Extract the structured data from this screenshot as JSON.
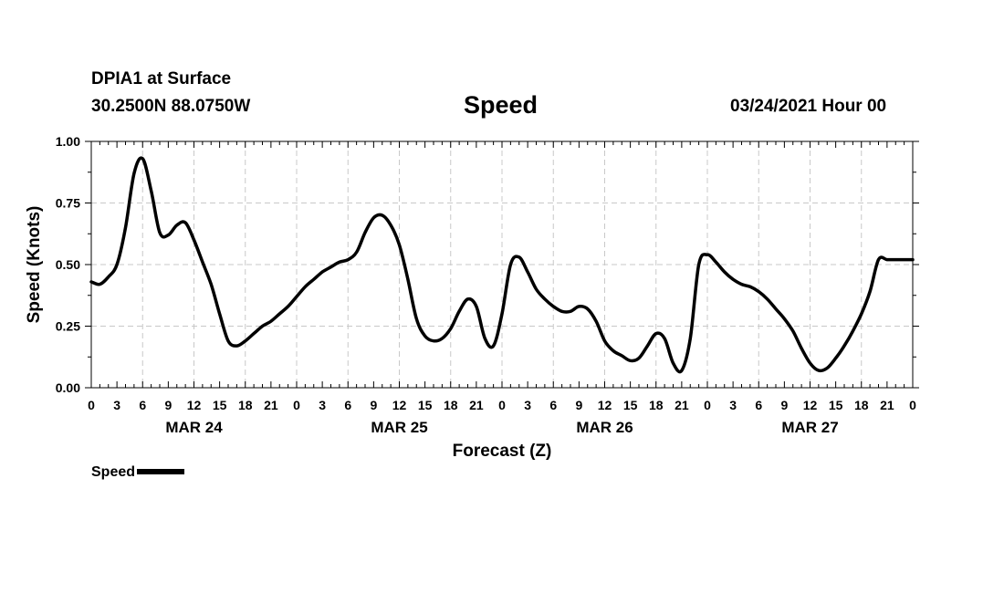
{
  "header": {
    "station": "DPIA1 at Surface",
    "coords": "30.2500N 88.0750W",
    "title": "Speed",
    "datetime": "03/24/2021 Hour 00"
  },
  "legend": {
    "label": "Speed"
  },
  "chart_data": {
    "type": "line",
    "title": "Speed",
    "xlabel": "Forecast (Z)",
    "ylabel": "Speed (Knots)",
    "xlim": [
      0,
      96
    ],
    "ylim": [
      0,
      1.0
    ],
    "grid": true,
    "legend_placement": "bottom-left",
    "x_tick_labels": [
      "0",
      "3",
      "6",
      "9",
      "12",
      "15",
      "18",
      "21",
      "0",
      "3",
      "6",
      "9",
      "12",
      "15",
      "18",
      "21",
      "0",
      "3",
      "6",
      "9",
      "12",
      "15",
      "18",
      "21",
      "0",
      "3",
      "6",
      "9",
      "12",
      "15",
      "18",
      "21",
      "0"
    ],
    "y_ticks": [
      0.0,
      0.25,
      0.5,
      0.75,
      1.0
    ],
    "y_tick_labels": [
      "0.00",
      "0.25",
      "0.50",
      "0.75",
      "1.00"
    ],
    "day_labels": [
      {
        "label": "MAR 24",
        "hour": 12
      },
      {
        "label": "MAR 25",
        "hour": 36
      },
      {
        "label": "MAR 26",
        "hour": 60
      },
      {
        "label": "MAR 27",
        "hour": 84
      }
    ],
    "series": [
      {
        "name": "Speed",
        "color": "#000000",
        "x": [
          0,
          1,
          2,
          3,
          4,
          5,
          6,
          7,
          8,
          9,
          10,
          11,
          12,
          13,
          14,
          15,
          16,
          17,
          18,
          19,
          20,
          21,
          22,
          23,
          24,
          25,
          26,
          27,
          28,
          29,
          30,
          31,
          32,
          33,
          34,
          35,
          36,
          37,
          38,
          39,
          40,
          41,
          42,
          43,
          44,
          45,
          46,
          47,
          48,
          49,
          50,
          51,
          52,
          53,
          54,
          55,
          56,
          57,
          58,
          59,
          60,
          61,
          62,
          63,
          64,
          65,
          66,
          67,
          68,
          69,
          70,
          71,
          72,
          73,
          74,
          75,
          76,
          77,
          78,
          79,
          80,
          81,
          82,
          83,
          84,
          85,
          86,
          87,
          88,
          89,
          90,
          91,
          92,
          93,
          94,
          95,
          96
        ],
        "values": [
          0.43,
          0.42,
          0.45,
          0.5,
          0.65,
          0.87,
          0.93,
          0.8,
          0.63,
          0.62,
          0.66,
          0.67,
          0.6,
          0.51,
          0.42,
          0.3,
          0.19,
          0.17,
          0.19,
          0.22,
          0.25,
          0.27,
          0.3,
          0.33,
          0.37,
          0.41,
          0.44,
          0.47,
          0.49,
          0.51,
          0.52,
          0.55,
          0.63,
          0.69,
          0.7,
          0.66,
          0.58,
          0.44,
          0.28,
          0.21,
          0.19,
          0.2,
          0.24,
          0.31,
          0.36,
          0.33,
          0.2,
          0.17,
          0.3,
          0.5,
          0.53,
          0.47,
          0.4,
          0.36,
          0.33,
          0.31,
          0.31,
          0.33,
          0.32,
          0.27,
          0.19,
          0.15,
          0.13,
          0.11,
          0.12,
          0.17,
          0.22,
          0.2,
          0.1,
          0.07,
          0.2,
          0.5,
          0.54,
          0.51,
          0.47,
          0.44,
          0.42,
          0.41,
          0.39,
          0.36,
          0.32,
          0.28,
          0.23,
          0.16,
          0.1,
          0.07,
          0.08,
          0.12,
          0.17,
          0.23,
          0.3,
          0.39,
          0.52,
          0.52,
          0.52,
          0.52,
          0.52
        ]
      }
    ]
  }
}
